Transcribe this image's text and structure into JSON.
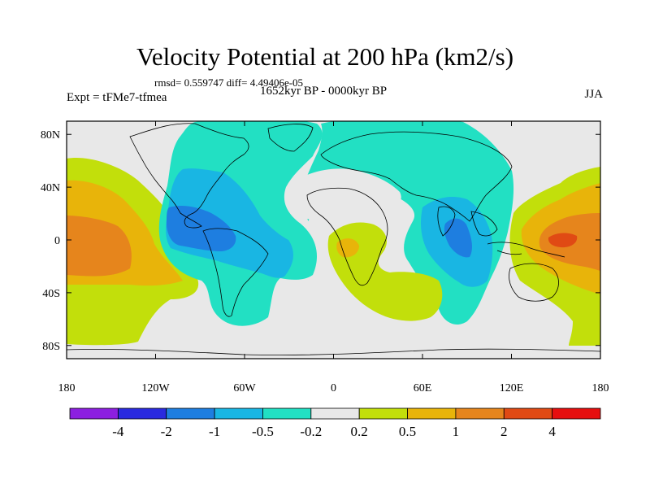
{
  "header": {
    "title": "Velocity Potential at 200 hPa (km2/s)",
    "stats": "rmsd= 0.559747  diff= 4.49406e-05",
    "experiment": "Expt = tFMe7-tfmea",
    "period": "1652kyr BP - 0000kyr BP",
    "season": "JJA"
  },
  "map": {
    "background_color": "#e8e8e8",
    "lon_ticks": [
      "180",
      "120W",
      "60W",
      "0",
      "60E",
      "120E",
      "180"
    ],
    "lat_ticks": [
      "80N",
      "40N",
      "0",
      "40S",
      "80S"
    ]
  },
  "colorbar": {
    "levels": [
      "-4",
      "-2",
      "-1",
      "-0.5",
      "-0.2",
      "0.2",
      "0.5",
      "1",
      "2",
      "4"
    ],
    "colors": [
      "#8c1fe0",
      "#2a2adf",
      "#1e7ee0",
      "#19b6e3",
      "#22e0c3",
      "#e8e8e8",
      "#c2df0b",
      "#e8b40a",
      "#e6851c",
      "#e04a14",
      "#e60f0f"
    ]
  },
  "fields": {
    "level_colors": {
      "neg_02": "#22e0c3",
      "neg_05": "#19b6e3",
      "neg_1": "#1e7ee0",
      "pos_02": "#c2df0b",
      "pos_05": "#e8b40a",
      "pos_1": "#e6851c",
      "pos_2": "#e04a14"
    }
  }
}
